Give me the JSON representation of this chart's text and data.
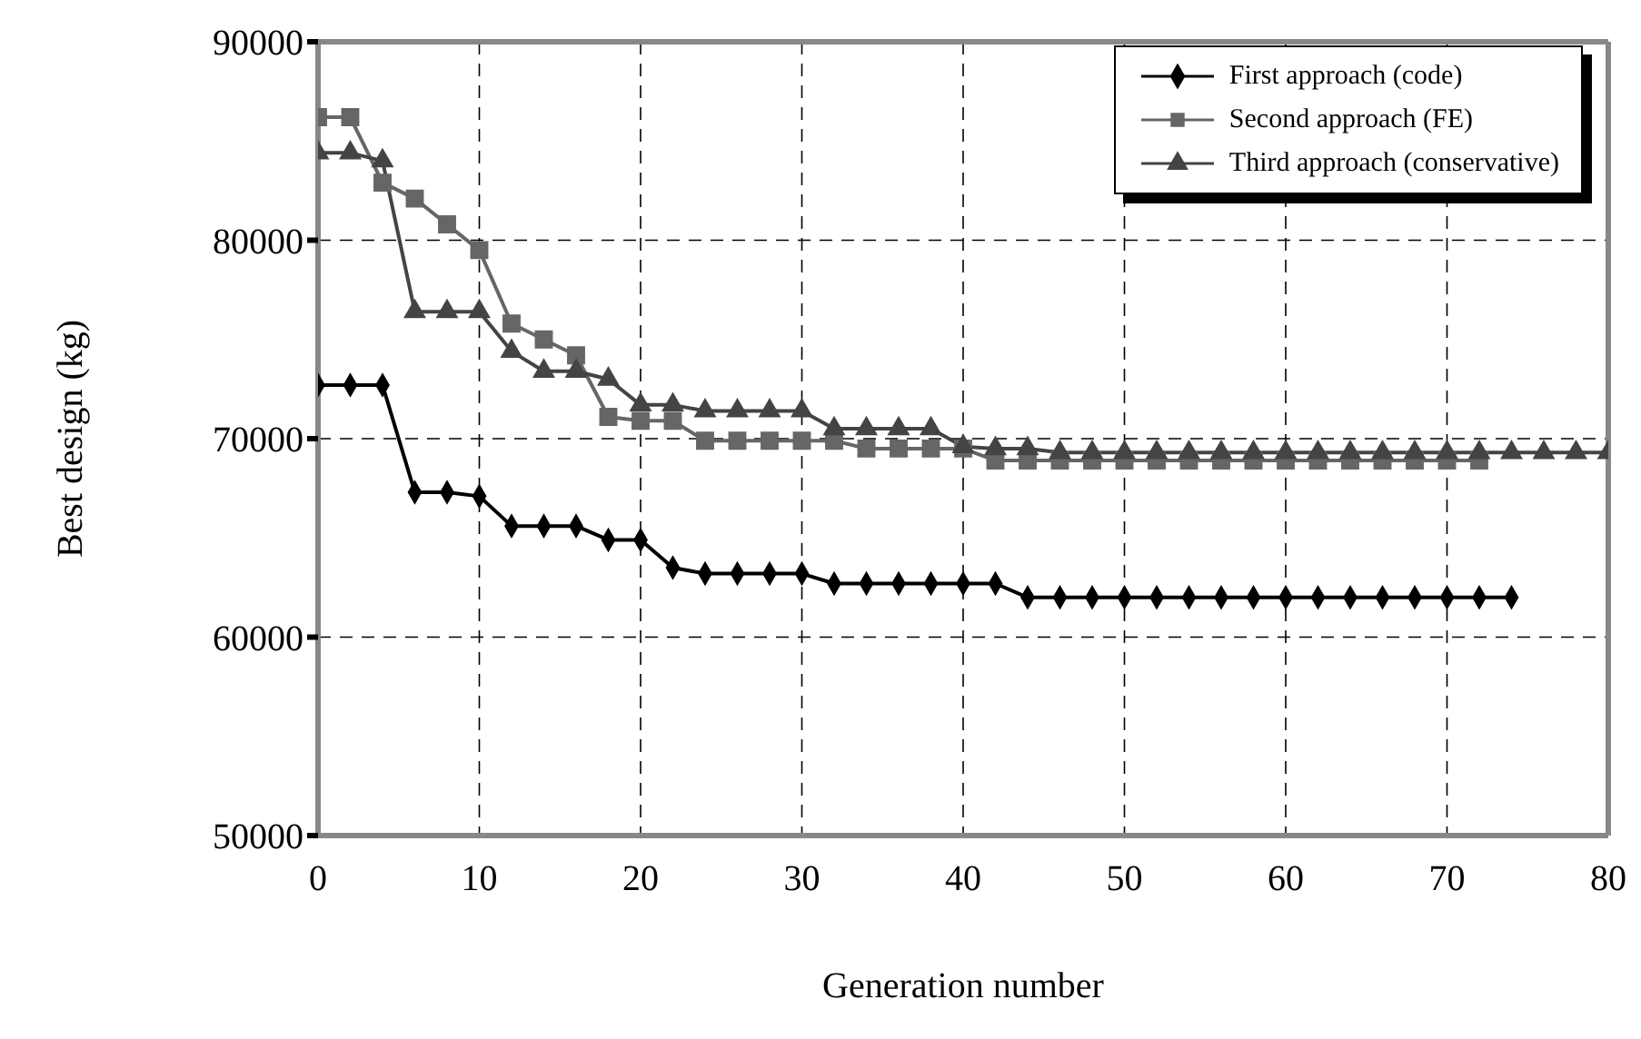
{
  "chart_data": {
    "type": "line",
    "xlabel": "Generation number",
    "ylabel": "Best design (kg)",
    "xlim": [
      0,
      80
    ],
    "xticks": [
      0,
      10,
      20,
      30,
      40,
      50,
      60,
      70,
      80
    ],
    "ylim": [
      50000,
      90000
    ],
    "yticks": [
      50000,
      60000,
      70000,
      80000,
      90000
    ],
    "grid": true,
    "legend": "top right",
    "line_style": "solid",
    "series": [
      {
        "name": "First approach (code)",
        "color": "#000000",
        "marker": "diamond",
        "x": [
          0,
          2,
          4,
          6,
          8,
          10,
          12,
          14,
          16,
          18,
          20,
          22,
          24,
          26,
          28,
          30,
          32,
          34,
          36,
          38,
          40,
          42,
          44,
          46,
          48,
          50,
          52,
          54,
          56,
          58,
          60,
          62,
          64,
          66,
          68,
          70,
          72,
          74
        ],
        "values": [
          72700,
          72700,
          72700,
          67300,
          67300,
          67100,
          65600,
          65600,
          65600,
          64900,
          64900,
          63500,
          63200,
          63200,
          63200,
          63200,
          62700,
          62700,
          62700,
          62700,
          62700,
          62700,
          62000,
          62000,
          62000,
          62000,
          62000,
          62000,
          62000,
          62000,
          62000,
          62000,
          62000,
          62000,
          62000,
          62000,
          62000,
          62000
        ]
      },
      {
        "name": "Second approach (FE)",
        "color": "#666666",
        "marker": "square",
        "x": [
          0,
          2,
          4,
          6,
          8,
          10,
          12,
          14,
          16,
          18,
          20,
          22,
          24,
          26,
          28,
          30,
          32,
          34,
          36,
          38,
          40,
          42,
          44,
          46,
          48,
          50,
          52,
          54,
          56,
          58,
          60,
          62,
          64,
          66,
          68,
          70,
          72
        ],
        "values": [
          86200,
          86200,
          82900,
          82100,
          80800,
          79500,
          75800,
          75000,
          74200,
          71100,
          70900,
          70900,
          69900,
          69900,
          69900,
          69900,
          69900,
          69500,
          69500,
          69500,
          69500,
          68900,
          68900,
          68900,
          68900,
          68900,
          68900,
          68900,
          68900,
          68900,
          68900,
          68900,
          68900,
          68900,
          68900,
          68900,
          68900
        ]
      },
      {
        "name": "Third approach (conservative)",
        "color": "#444444",
        "marker": "triangle",
        "x": [
          0,
          2,
          4,
          6,
          8,
          10,
          12,
          14,
          16,
          18,
          20,
          22,
          24,
          26,
          28,
          30,
          32,
          34,
          36,
          38,
          40,
          42,
          44,
          46,
          48,
          50,
          52,
          54,
          56,
          58,
          60,
          62,
          64,
          66,
          68,
          70,
          72,
          74,
          76,
          78,
          80
        ],
        "values": [
          84400,
          84400,
          84000,
          76400,
          76400,
          76400,
          74400,
          73400,
          73400,
          73000,
          71700,
          71700,
          71400,
          71400,
          71400,
          71400,
          70500,
          70500,
          70500,
          70500,
          69600,
          69500,
          69500,
          69300,
          69300,
          69300,
          69300,
          69300,
          69300,
          69300,
          69300,
          69300,
          69300,
          69300,
          69300,
          69300,
          69300,
          69300,
          69300,
          69300,
          69300
        ]
      }
    ]
  }
}
